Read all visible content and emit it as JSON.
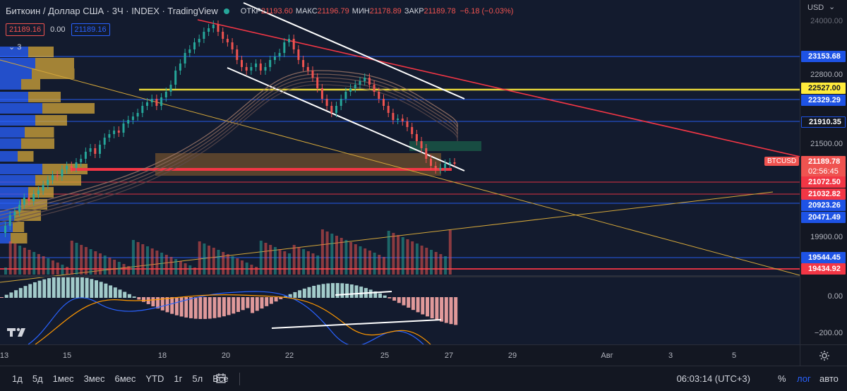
{
  "header": {
    "symbol": "Биткоин / Доллар США · 3Ч · INDEX · TradingView",
    "open_label": "ОТКР",
    "open": "21193.60",
    "high_label": "МАКС",
    "high": "21196.79",
    "low_label": "МИН",
    "low": "21178.89",
    "close_label": "ЗАКР",
    "close": "21189.78",
    "change": "−6.18 (−0.03%)"
  },
  "price_row": {
    "bid": "21189.16",
    "spread": "0.00",
    "ask": "21189.16"
  },
  "indicator_toggle": "3",
  "price_scale": {
    "currency": "USD",
    "ticks": [
      "24000.00",
      "22800.00",
      "21500.00",
      "19900.00",
      "0.00",
      "−200.00"
    ],
    "labels": {
      "l1": "23153.68",
      "l2": "22527.00",
      "l3": "22329.29",
      "l4": "21910.35",
      "symbol": "BTCUSD",
      "last": "21189.78",
      "countdown": "02:56:45",
      "l5": "21072.50",
      "l6": "21032.82",
      "l7": "20923.26",
      "l8": "20471.49",
      "l9": "19544.45",
      "l10": "19434.92"
    }
  },
  "time_axis": [
    "13",
    "15",
    "18",
    "20",
    "22",
    "25",
    "27",
    "29",
    "Авг",
    "3",
    "5"
  ],
  "toolbar": {
    "timeframes": [
      "1д",
      "5д",
      "1мес",
      "3мес",
      "6мес",
      "YTD",
      "1г",
      "5л",
      "Все"
    ],
    "clock": "06:03:14 (UTC+3)",
    "percent": "%",
    "log": "лог",
    "auto": "авто"
  },
  "colors": {
    "bull": "#26a69a",
    "bear": "#ef5350",
    "accent": "#2962ff",
    "yellow": "#ffeb3b",
    "red_line": "#f23645"
  },
  "icons": [
    "tradingview-logo-icon",
    "gear-icon",
    "calendar-range-icon"
  ]
}
